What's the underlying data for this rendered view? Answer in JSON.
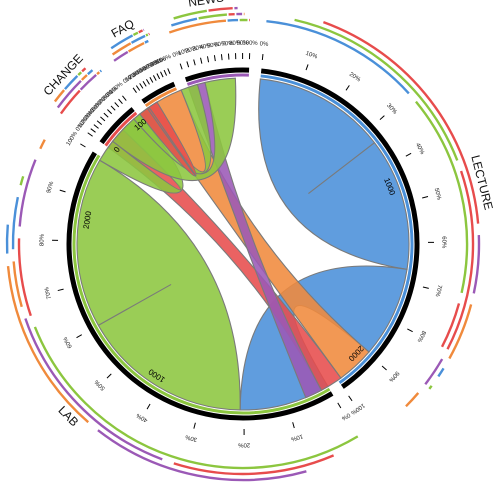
{
  "chart_data": {
    "type": "chord",
    "title": "",
    "segments": [
      {
        "name": "LECTURE",
        "value": 2100,
        "color": "#4a90d9"
      },
      {
        "name": "LAB",
        "value": 2300,
        "color": "#8cc63f"
      },
      {
        "name": "CHANGE",
        "value": 230,
        "color": "#e74c4c"
      },
      {
        "name": "FAQ",
        "value": 180,
        "color": "#f08a3c"
      },
      {
        "name": "NEWS",
        "value": 320,
        "color": "#9b59b6"
      }
    ],
    "axis_labels": {
      "lecture": [
        "1000",
        "2000"
      ],
      "lab": [
        "1000",
        "2000"
      ],
      "change": [
        "0",
        "100"
      ]
    },
    "tick_percent_labels": [
      "0%",
      "10%",
      "20%",
      "30%",
      "40%",
      "50%",
      "60%",
      "70%",
      "80%",
      "90%",
      "100%"
    ],
    "flows": [
      {
        "from": "LECTURE",
        "to": "LECTURE",
        "value": 700,
        "color": "#4a90d9"
      },
      {
        "from": "LECTURE",
        "to": "LAB",
        "value": 480,
        "color": "#4a90d9"
      },
      {
        "from": "LECTURE",
        "to": "FAQ",
        "value": 200,
        "color": "#f08a3c"
      },
      {
        "from": "LECTURE",
        "to": "CHANGE",
        "value": 120,
        "color": "#e74c4c"
      },
      {
        "from": "LECTURE",
        "to": "NEWS",
        "value": 90,
        "color": "#9b59b6"
      },
      {
        "from": "LAB",
        "to": "LAB",
        "value": 900,
        "color": "#8cc63f"
      },
      {
        "from": "LAB",
        "to": "CHANGE",
        "value": 120,
        "color": "#8cc63f"
      },
      {
        "from": "LAB",
        "to": "NEWS",
        "value": 160,
        "color": "#8cc63f"
      },
      {
        "from": "LAB",
        "to": "FAQ",
        "value": 90,
        "color": "#8cc63f"
      },
      {
        "from": "CHANGE",
        "to": "LAB",
        "value": 60,
        "color": "#e74c4c"
      }
    ]
  }
}
